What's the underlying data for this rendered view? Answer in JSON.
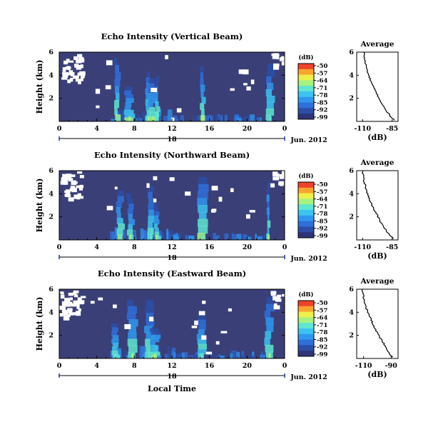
{
  "figure": {
    "xlabel": "Local Time",
    "date_label": "Jun. 2012",
    "day_label": "18",
    "colorbar_unit": "(dB)",
    "avg_title": "Average",
    "avg_xlabel": "(dB)"
  },
  "colors": {
    "background_low": "#3a3f78",
    "colormap": [
      "#2e3477",
      "#2c4ea6",
      "#2f6fd8",
      "#2f98ee",
      "#3bc4f0",
      "#5ee6d0",
      "#a6f27f",
      "#eef04a",
      "#fca52d",
      "#f0432a"
    ],
    "missing": "#ffffff"
  },
  "chart_data": [
    {
      "type": "heatmap",
      "title": "Echo Intensity (Vertical Beam)",
      "ylabel": "Height (km)",
      "xlabel": "",
      "x_ticks": [
        "0",
        "4",
        "8",
        "12",
        "16",
        "20",
        "0"
      ],
      "y_ticks": [
        "2",
        "4",
        "6"
      ],
      "xlim": [
        0,
        24
      ],
      "ylim": [
        0,
        6
      ],
      "colorbar": {
        "label": "(dB)",
        "ticks": [
          "-50",
          "-57",
          "-64",
          "-71",
          "-78",
          "-85",
          "-92",
          "-99"
        ]
      },
      "bright_columns_hours": [
        6.2,
        7.5,
        9.5,
        10.0,
        10.4,
        15.3,
        22.5
      ],
      "average_profile": {
        "title": "Average",
        "xlabel": "(dB)",
        "x_ticks": [
          "-110",
          "-85"
        ],
        "xlim": [
          -115,
          -80
        ],
        "y_ticks": [
          "2",
          "4",
          "6"
        ],
        "ylim": [
          0,
          6
        ],
        "height_km": [
          6.0,
          5.6,
          5.2,
          4.8,
          4.4,
          4.0,
          3.6,
          3.2,
          2.8,
          2.4,
          2.0,
          1.6,
          1.2,
          0.8,
          0.4,
          0.1
        ],
        "db": [
          -109,
          -108.5,
          -108,
          -107,
          -106,
          -105,
          -103.5,
          -102,
          -100,
          -98,
          -96,
          -94,
          -92,
          -89,
          -86,
          -83
        ]
      }
    },
    {
      "type": "heatmap",
      "title": "Echo Intensity (Northward Beam)",
      "ylabel": "Height (km)",
      "xlabel": "",
      "x_ticks": [
        "0",
        "4",
        "8",
        "12",
        "16",
        "20",
        "0"
      ],
      "y_ticks": [
        "2",
        "4",
        "6"
      ],
      "xlim": [
        0,
        24
      ],
      "ylim": [
        0,
        6
      ],
      "colorbar": {
        "label": "(dB)",
        "ticks": [
          "-50",
          "-57",
          "-64",
          "-71",
          "-78",
          "-85",
          "-92",
          "-99"
        ]
      },
      "bright_columns_hours": [
        6.5,
        7.6,
        9.8,
        10.4,
        15.3,
        22.3
      ],
      "average_profile": {
        "title": "Average",
        "xlabel": "(dB)",
        "x_ticks": [
          "-110",
          "-85"
        ],
        "xlim": [
          -115,
          -80
        ],
        "y_ticks": [
          "2",
          "4",
          "6"
        ],
        "ylim": [
          0,
          6
        ],
        "height_km": [
          6.0,
          5.6,
          5.2,
          4.8,
          4.4,
          4.0,
          3.6,
          3.2,
          2.8,
          2.4,
          2.0,
          1.6,
          1.2,
          0.8,
          0.4,
          0.1
        ],
        "db": [
          -110,
          -109.5,
          -109,
          -108,
          -107,
          -106,
          -104.5,
          -103,
          -101,
          -99,
          -97,
          -95,
          -93,
          -90,
          -87,
          -84
        ]
      }
    },
    {
      "type": "heatmap",
      "title": "Echo Intensity (Eastward Beam)",
      "ylabel": "Height (km)",
      "xlabel": "Local Time",
      "x_ticks": [
        "0",
        "4",
        "8",
        "12",
        "16",
        "20",
        "0"
      ],
      "y_ticks": [
        "2",
        "4",
        "6"
      ],
      "xlim": [
        0,
        24
      ],
      "ylim": [
        0,
        6
      ],
      "colorbar": {
        "label": "(dB)",
        "ticks": [
          "-50",
          "-57",
          "-64",
          "-71",
          "-78",
          "-85",
          "-92",
          "-99"
        ]
      },
      "bright_columns_hours": [
        6.0,
        7.8,
        9.6,
        10.2,
        15.2,
        22.4
      ],
      "average_profile": {
        "title": "Average",
        "xlabel": "(dB)",
        "x_ticks": [
          "-110",
          "-90"
        ],
        "xlim": [
          -115,
          -85
        ],
        "y_ticks": [
          "2",
          "4",
          "6"
        ],
        "ylim": [
          0,
          6
        ],
        "height_km": [
          6.0,
          5.6,
          5.2,
          4.8,
          4.4,
          4.0,
          3.6,
          3.2,
          2.8,
          2.4,
          2.0,
          1.6,
          1.2,
          0.8,
          0.4,
          0.1
        ],
        "db": [
          -111,
          -110.5,
          -110,
          -109,
          -108,
          -107,
          -105.5,
          -104,
          -102.5,
          -101,
          -99,
          -97,
          -95,
          -93,
          -91,
          -89
        ]
      }
    }
  ]
}
